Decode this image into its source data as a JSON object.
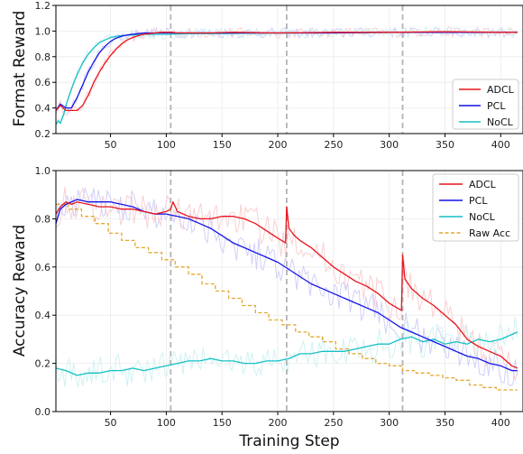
{
  "chart_data": [
    {
      "type": "line",
      "title": "",
      "xlabel": "",
      "ylabel": "Format Reward",
      "xlim": [
        1,
        420
      ],
      "ylim": [
        0.2,
        1.2
      ],
      "xticks": [
        50,
        100,
        150,
        200,
        250,
        300,
        350,
        400
      ],
      "yticks": [
        0.2,
        0.4,
        0.6,
        0.8,
        1.0,
        1.2
      ],
      "grid": true,
      "legend": "lower-right",
      "vlines": [
        104,
        208,
        312
      ],
      "series": [
        {
          "name": "ADCL",
          "color": "#e8141b",
          "x": [
            1,
            5,
            10,
            15,
            20,
            25,
            30,
            35,
            40,
            45,
            50,
            55,
            60,
            65,
            70,
            75,
            80,
            85,
            90,
            95,
            100,
            105,
            110,
            120,
            140,
            160,
            200,
            250,
            300,
            350,
            400,
            415
          ],
          "y": [
            0.38,
            0.42,
            0.38,
            0.38,
            0.38,
            0.42,
            0.5,
            0.6,
            0.68,
            0.75,
            0.81,
            0.86,
            0.9,
            0.93,
            0.95,
            0.965,
            0.975,
            0.98,
            0.985,
            0.99,
            0.99,
            0.99,
            0.985,
            0.985,
            0.985,
            0.99,
            0.985,
            0.99,
            0.99,
            0.995,
            0.99,
            0.99
          ]
        },
        {
          "name": "PCL",
          "color": "#1414e6",
          "x": [
            1,
            5,
            10,
            15,
            20,
            25,
            30,
            35,
            40,
            45,
            50,
            55,
            60,
            65,
            70,
            75,
            80,
            90,
            100,
            110,
            120,
            150,
            200,
            250,
            300,
            350,
            400,
            415
          ],
          "y": [
            0.38,
            0.43,
            0.4,
            0.4,
            0.48,
            0.58,
            0.68,
            0.76,
            0.83,
            0.88,
            0.92,
            0.945,
            0.96,
            0.97,
            0.975,
            0.98,
            0.985,
            0.985,
            0.985,
            0.985,
            0.985,
            0.985,
            0.985,
            0.985,
            0.99,
            0.99,
            0.99,
            0.99
          ]
        },
        {
          "name": "NoCL",
          "color": "#15c0c4",
          "x": [
            1,
            3,
            5,
            8,
            10,
            15,
            20,
            25,
            30,
            35,
            40,
            45,
            50,
            55,
            60,
            70,
            80,
            90,
            100,
            120,
            150,
            200,
            250,
            300,
            350,
            400,
            415
          ],
          "y": [
            0.27,
            0.3,
            0.28,
            0.35,
            0.42,
            0.55,
            0.66,
            0.75,
            0.82,
            0.87,
            0.91,
            0.93,
            0.95,
            0.96,
            0.965,
            0.97,
            0.975,
            0.975,
            0.975,
            0.98,
            0.98,
            0.985,
            0.985,
            0.99,
            0.99,
            0.99,
            0.99
          ]
        }
      ]
    },
    {
      "type": "line",
      "title": "",
      "xlabel": "Training Step",
      "ylabel": "Accuracy Reward",
      "xlim": [
        1,
        420
      ],
      "ylim": [
        0.0,
        1.0
      ],
      "xticks": [
        50,
        100,
        150,
        200,
        250,
        300,
        350,
        400
      ],
      "yticks": [
        0.0,
        0.2,
        0.4,
        0.6,
        0.8,
        1.0
      ],
      "grid": true,
      "legend": "top-right",
      "vlines": [
        104,
        208,
        312
      ],
      "series": [
        {
          "name": "ADCL",
          "color": "#e8141b",
          "style": "solid",
          "x": [
            1,
            5,
            10,
            15,
            20,
            30,
            40,
            50,
            60,
            70,
            80,
            90,
            100,
            104,
            106,
            110,
            120,
            130,
            140,
            150,
            160,
            170,
            180,
            190,
            200,
            207,
            208,
            210,
            215,
            220,
            230,
            240,
            250,
            260,
            270,
            280,
            290,
            300,
            311,
            312,
            314,
            320,
            330,
            340,
            350,
            360,
            370,
            380,
            390,
            400,
            410,
            415
          ],
          "y": [
            0.82,
            0.85,
            0.87,
            0.86,
            0.87,
            0.86,
            0.85,
            0.85,
            0.84,
            0.84,
            0.83,
            0.82,
            0.83,
            0.84,
            0.87,
            0.83,
            0.81,
            0.8,
            0.8,
            0.81,
            0.81,
            0.8,
            0.78,
            0.75,
            0.72,
            0.7,
            0.85,
            0.76,
            0.73,
            0.71,
            0.68,
            0.64,
            0.6,
            0.57,
            0.54,
            0.52,
            0.49,
            0.45,
            0.42,
            0.65,
            0.55,
            0.51,
            0.47,
            0.44,
            0.4,
            0.36,
            0.3,
            0.27,
            0.25,
            0.23,
            0.19,
            0.18
          ]
        },
        {
          "name": "PCL",
          "color": "#1414e6",
          "style": "solid",
          "x": [
            1,
            5,
            10,
            20,
            30,
            40,
            50,
            60,
            70,
            80,
            90,
            100,
            110,
            120,
            130,
            140,
            150,
            160,
            170,
            180,
            190,
            200,
            210,
            220,
            230,
            240,
            250,
            260,
            270,
            280,
            290,
            300,
            310,
            320,
            330,
            340,
            350,
            360,
            370,
            380,
            390,
            400,
            410,
            415
          ],
          "y": [
            0.78,
            0.84,
            0.86,
            0.88,
            0.87,
            0.87,
            0.87,
            0.86,
            0.85,
            0.83,
            0.82,
            0.82,
            0.81,
            0.8,
            0.78,
            0.76,
            0.73,
            0.7,
            0.68,
            0.66,
            0.64,
            0.62,
            0.59,
            0.56,
            0.53,
            0.51,
            0.49,
            0.47,
            0.45,
            0.43,
            0.41,
            0.38,
            0.35,
            0.33,
            0.31,
            0.29,
            0.27,
            0.25,
            0.23,
            0.22,
            0.2,
            0.19,
            0.17,
            0.17
          ]
        },
        {
          "name": "NoCL",
          "color": "#15c0c4",
          "style": "solid",
          "x": [
            1,
            10,
            20,
            30,
            40,
            50,
            60,
            70,
            80,
            90,
            100,
            110,
            120,
            130,
            140,
            150,
            160,
            170,
            180,
            190,
            200,
            210,
            220,
            230,
            240,
            250,
            260,
            270,
            280,
            290,
            300,
            310,
            320,
            330,
            340,
            350,
            360,
            370,
            380,
            390,
            400,
            410,
            415
          ],
          "y": [
            0.18,
            0.17,
            0.15,
            0.16,
            0.16,
            0.17,
            0.17,
            0.18,
            0.17,
            0.18,
            0.19,
            0.2,
            0.21,
            0.21,
            0.22,
            0.21,
            0.21,
            0.2,
            0.2,
            0.21,
            0.21,
            0.22,
            0.24,
            0.24,
            0.25,
            0.25,
            0.25,
            0.26,
            0.27,
            0.28,
            0.28,
            0.3,
            0.31,
            0.29,
            0.3,
            0.28,
            0.29,
            0.28,
            0.3,
            0.29,
            0.3,
            0.32,
            0.33
          ]
        },
        {
          "name": "Raw Acc",
          "color": "#e3a72f",
          "style": "dashed",
          "x": [
            1,
            12,
            12,
            24,
            24,
            36,
            36,
            48,
            48,
            60,
            60,
            72,
            72,
            84,
            84,
            96,
            96,
            108,
            108,
            120,
            120,
            132,
            132,
            144,
            144,
            156,
            156,
            168,
            168,
            180,
            180,
            192,
            192,
            204,
            204,
            216,
            216,
            228,
            228,
            240,
            240,
            252,
            252,
            264,
            264,
            276,
            276,
            288,
            288,
            300,
            300,
            312,
            312,
            324,
            324,
            336,
            336,
            348,
            348,
            360,
            360,
            372,
            372,
            384,
            384,
            396,
            396,
            415
          ],
          "y": [
            0.86,
            0.86,
            0.84,
            0.84,
            0.81,
            0.81,
            0.78,
            0.78,
            0.74,
            0.74,
            0.71,
            0.71,
            0.68,
            0.68,
            0.66,
            0.66,
            0.63,
            0.63,
            0.6,
            0.6,
            0.57,
            0.57,
            0.53,
            0.53,
            0.5,
            0.5,
            0.47,
            0.47,
            0.44,
            0.44,
            0.41,
            0.41,
            0.38,
            0.38,
            0.36,
            0.36,
            0.33,
            0.33,
            0.31,
            0.31,
            0.29,
            0.29,
            0.26,
            0.26,
            0.24,
            0.24,
            0.22,
            0.22,
            0.2,
            0.2,
            0.19,
            0.19,
            0.17,
            0.17,
            0.16,
            0.16,
            0.15,
            0.15,
            0.14,
            0.14,
            0.13,
            0.13,
            0.11,
            0.11,
            0.1,
            0.1,
            0.09,
            0.09
          ]
        }
      ]
    }
  ]
}
